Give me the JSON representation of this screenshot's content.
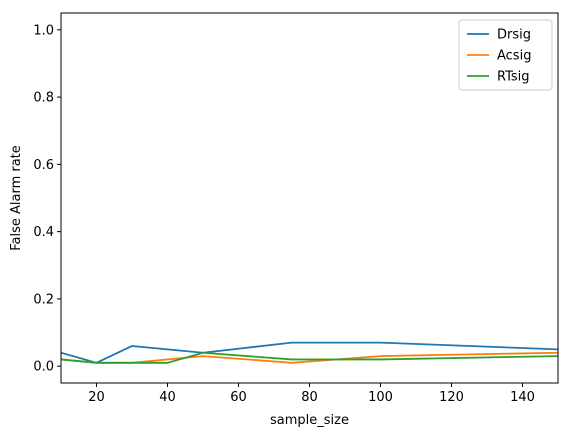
{
  "chart_data": {
    "type": "line",
    "title": "",
    "xlabel": "sample_size",
    "ylabel": "False Alarm rate",
    "xlim": [
      10,
      150
    ],
    "ylim": [
      -0.05,
      1.05
    ],
    "xticks": [
      20,
      40,
      60,
      80,
      100,
      120,
      140
    ],
    "yticks": [
      0.0,
      0.2,
      0.4,
      0.6,
      0.8,
      1.0
    ],
    "grid": false,
    "legend_position": "top-right",
    "series": [
      {
        "name": "Drsig",
        "color": "#1f77b4",
        "x": [
          10,
          20,
          30,
          40,
          50,
          75,
          100,
          150
        ],
        "y": [
          0.04,
          0.01,
          0.06,
          0.05,
          0.04,
          0.07,
          0.07,
          0.05
        ]
      },
      {
        "name": "Acsig",
        "color": "#ff7f0e",
        "x": [
          10,
          20,
          30,
          40,
          50,
          75,
          100,
          150
        ],
        "y": [
          0.02,
          0.01,
          0.01,
          0.02,
          0.03,
          0.01,
          0.03,
          0.04
        ]
      },
      {
        "name": "RTsig",
        "color": "#2ca02c",
        "x": [
          10,
          20,
          30,
          40,
          50,
          75,
          100,
          150
        ],
        "y": [
          0.02,
          0.01,
          0.01,
          0.01,
          0.04,
          0.02,
          0.02,
          0.03
        ]
      }
    ]
  }
}
